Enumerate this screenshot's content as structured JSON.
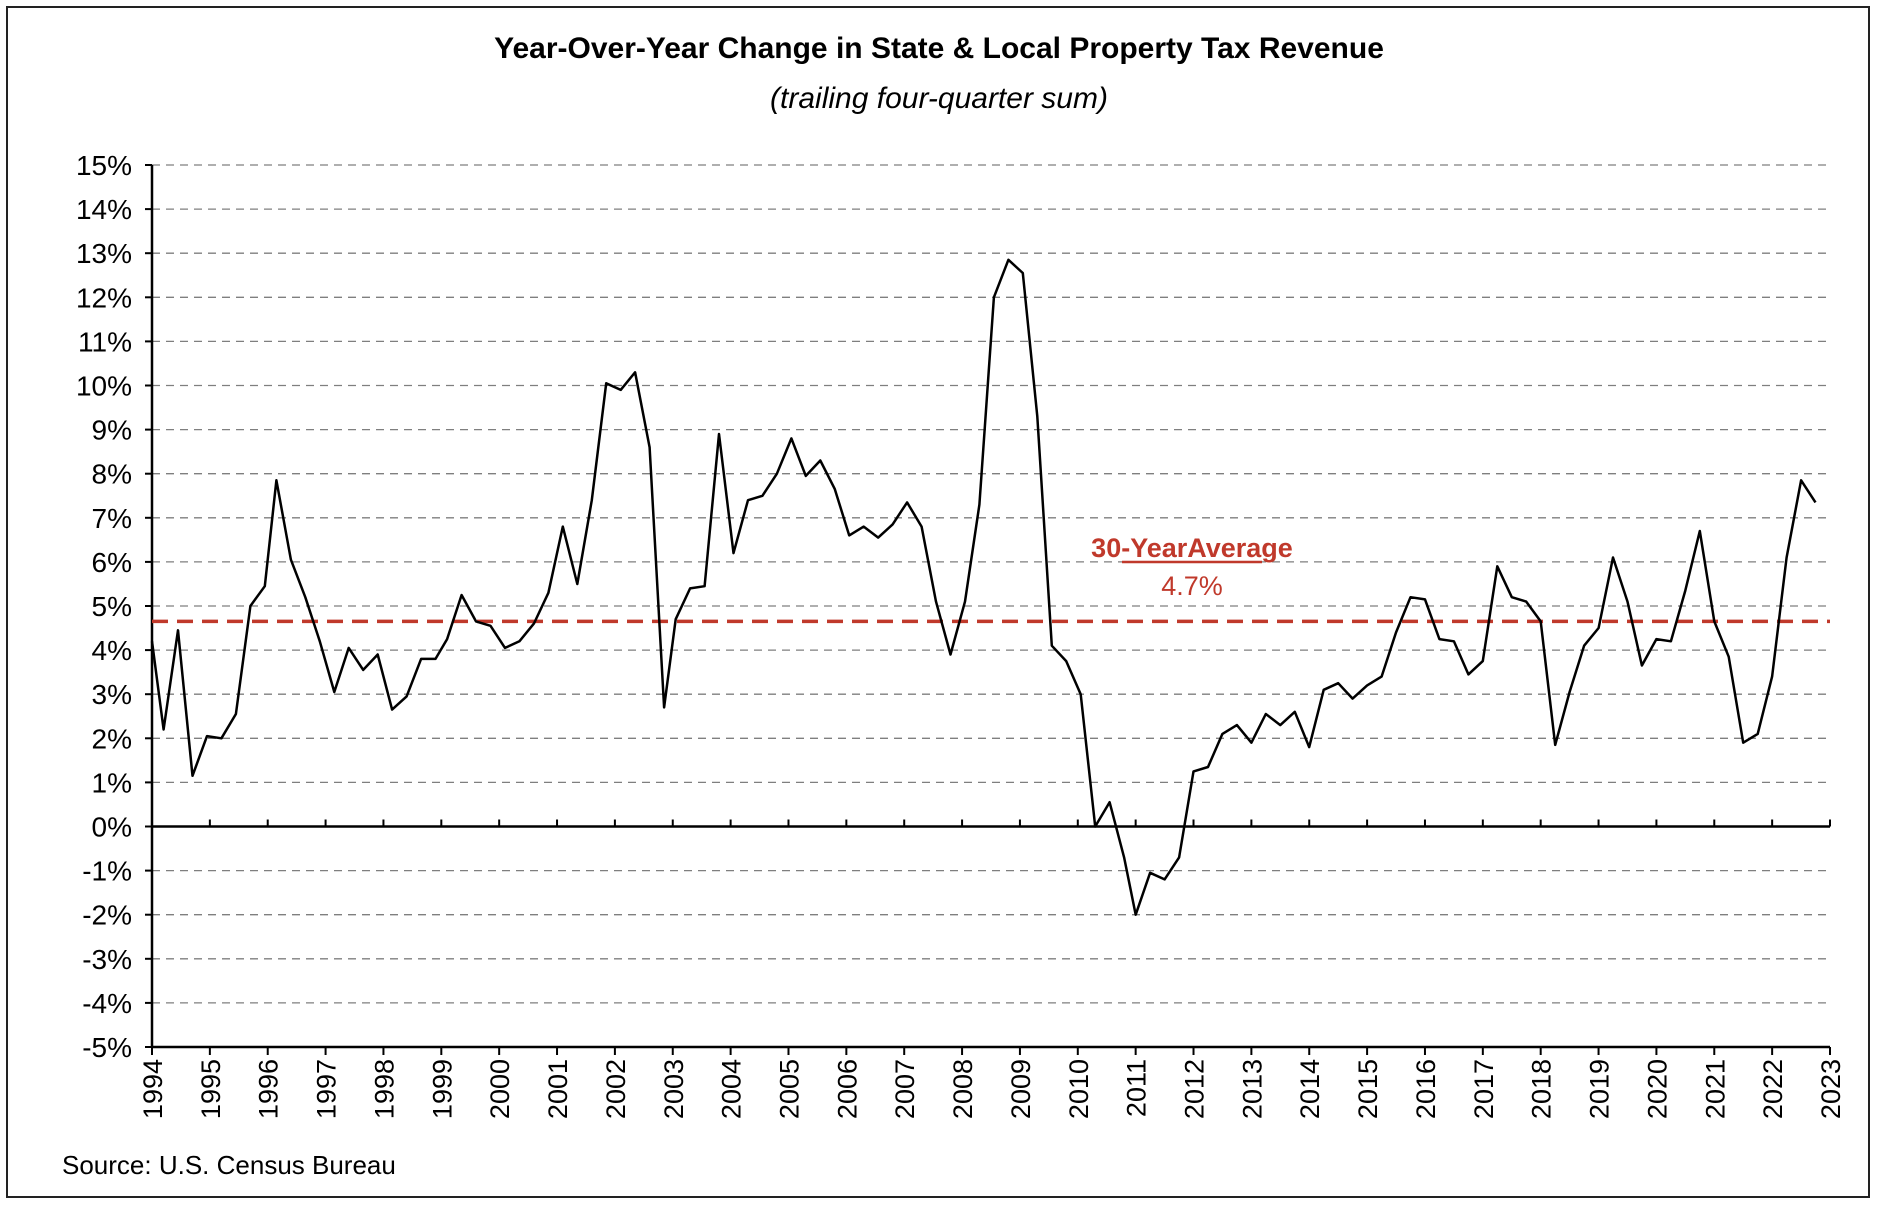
{
  "chart_data": {
    "type": "line",
    "title": "Year-Over-Year Change in State & Local Property Tax Revenue",
    "subtitle": "(trailing four-quarter sum)",
    "source": "Source: U.S. Census Bureau",
    "ylim": [
      -5,
      15
    ],
    "y_ticks": [
      15,
      14,
      13,
      12,
      11,
      10,
      9,
      8,
      7,
      6,
      5,
      4,
      3,
      2,
      1,
      0,
      -1,
      -2,
      -3,
      -4,
      -5
    ],
    "y_tick_labels": [
      "15%",
      "14%",
      "13%",
      "12%",
      "11%",
      "10%",
      "9%",
      "8%",
      "7%",
      "6%",
      "5%",
      "4%",
      "3%",
      "2%",
      "1%",
      "0%",
      "-1%",
      "-2%",
      "-3%",
      "-4%",
      "-5%"
    ],
    "xlim": [
      1994,
      2023
    ],
    "x_tick_labels": [
      "1994",
      "1995",
      "1996",
      "1997",
      "1998",
      "1999",
      "2000",
      "2001",
      "2002",
      "2003",
      "2004",
      "2005",
      "2006",
      "2007",
      "2008",
      "2009",
      "2010",
      "2011",
      "2012",
      "2013",
      "2014",
      "2015",
      "2016",
      "2017",
      "2018",
      "2019",
      "2020",
      "2021",
      "2022",
      "2023"
    ],
    "grid": true,
    "series": [
      {
        "color": "#000000",
        "points": [
          [
            1994.0,
            4.2
          ],
          [
            1994.2,
            2.2
          ],
          [
            1994.45,
            4.45
          ],
          [
            1994.7,
            1.15
          ],
          [
            1994.95,
            2.05
          ],
          [
            1995.2,
            2.0
          ],
          [
            1995.45,
            2.55
          ],
          [
            1995.7,
            5.0
          ],
          [
            1995.95,
            5.45
          ],
          [
            1996.15,
            7.85
          ],
          [
            1996.4,
            6.05
          ],
          [
            1996.65,
            5.2
          ],
          [
            1996.9,
            4.2
          ],
          [
            1997.15,
            3.05
          ],
          [
            1997.4,
            4.05
          ],
          [
            1997.65,
            3.55
          ],
          [
            1997.9,
            3.9
          ],
          [
            1998.15,
            2.65
          ],
          [
            1998.4,
            2.95
          ],
          [
            1998.65,
            3.8
          ],
          [
            1998.9,
            3.8
          ],
          [
            1999.1,
            4.25
          ],
          [
            1999.35,
            5.25
          ],
          [
            1999.6,
            4.65
          ],
          [
            1999.85,
            4.55
          ],
          [
            2000.1,
            4.05
          ],
          [
            2000.35,
            4.2
          ],
          [
            2000.6,
            4.6
          ],
          [
            2000.85,
            5.3
          ],
          [
            2001.1,
            6.8
          ],
          [
            2001.35,
            5.5
          ],
          [
            2001.6,
            7.4
          ],
          [
            2001.85,
            10.05
          ],
          [
            2002.1,
            9.9
          ],
          [
            2002.35,
            10.3
          ],
          [
            2002.6,
            8.6
          ],
          [
            2002.85,
            2.7
          ],
          [
            2003.05,
            4.7
          ],
          [
            2003.3,
            5.4
          ],
          [
            2003.55,
            5.45
          ],
          [
            2003.8,
            8.9
          ],
          [
            2004.05,
            6.2
          ],
          [
            2004.3,
            7.4
          ],
          [
            2004.55,
            7.5
          ],
          [
            2004.8,
            8.0
          ],
          [
            2005.05,
            8.8
          ],
          [
            2005.3,
            7.95
          ],
          [
            2005.55,
            8.3
          ],
          [
            2005.8,
            7.65
          ],
          [
            2006.05,
            6.6
          ],
          [
            2006.3,
            6.8
          ],
          [
            2006.55,
            6.55
          ],
          [
            2006.8,
            6.85
          ],
          [
            2007.05,
            7.35
          ],
          [
            2007.3,
            6.8
          ],
          [
            2007.55,
            5.1
          ],
          [
            2007.8,
            3.9
          ],
          [
            2008.05,
            5.1
          ],
          [
            2008.3,
            7.3
          ],
          [
            2008.55,
            12.0
          ],
          [
            2008.8,
            12.85
          ],
          [
            2009.05,
            12.55
          ],
          [
            2009.3,
            9.3
          ],
          [
            2009.55,
            4.1
          ],
          [
            2009.8,
            3.75
          ],
          [
            2010.05,
            3.0
          ],
          [
            2010.3,
            0.0
          ],
          [
            2010.55,
            0.55
          ],
          [
            2010.8,
            -0.7
          ],
          [
            2011.0,
            -2.0
          ],
          [
            2011.25,
            -1.05
          ],
          [
            2011.5,
            -1.2
          ],
          [
            2011.75,
            -0.7
          ],
          [
            2012.0,
            1.25
          ],
          [
            2012.25,
            1.35
          ],
          [
            2012.5,
            2.1
          ],
          [
            2012.75,
            2.3
          ],
          [
            2013.0,
            1.9
          ],
          [
            2013.25,
            2.55
          ],
          [
            2013.5,
            2.3
          ],
          [
            2013.75,
            2.6
          ],
          [
            2014.0,
            1.8
          ],
          [
            2014.25,
            3.1
          ],
          [
            2014.5,
            3.25
          ],
          [
            2014.75,
            2.9
          ],
          [
            2015.0,
            3.2
          ],
          [
            2015.25,
            3.4
          ],
          [
            2015.5,
            4.4
          ],
          [
            2015.75,
            5.2
          ],
          [
            2016.0,
            5.15
          ],
          [
            2016.25,
            4.25
          ],
          [
            2016.5,
            4.2
          ],
          [
            2016.75,
            3.45
          ],
          [
            2017.0,
            3.75
          ],
          [
            2017.25,
            5.9
          ],
          [
            2017.5,
            5.2
          ],
          [
            2017.75,
            5.1
          ],
          [
            2018.0,
            4.65
          ],
          [
            2018.25,
            1.85
          ],
          [
            2018.5,
            3.05
          ],
          [
            2018.75,
            4.1
          ],
          [
            2019.0,
            4.5
          ],
          [
            2019.25,
            6.1
          ],
          [
            2019.5,
            5.1
          ],
          [
            2019.75,
            3.65
          ],
          [
            2020.0,
            4.25
          ],
          [
            2020.25,
            4.2
          ],
          [
            2020.5,
            5.35
          ],
          [
            2020.75,
            6.7
          ],
          [
            2021.0,
            4.65
          ],
          [
            2021.25,
            3.85
          ],
          [
            2021.5,
            1.9
          ],
          [
            2021.75,
            2.1
          ],
          [
            2022.0,
            3.4
          ],
          [
            2022.25,
            6.1
          ],
          [
            2022.5,
            7.85
          ],
          [
            2022.75,
            7.35
          ]
        ]
      }
    ],
    "reference_line": {
      "value": 4.65,
      "style": "dashed",
      "color": "#c0392b",
      "label": "30-YearAverage",
      "value_label": "4.7%"
    }
  }
}
